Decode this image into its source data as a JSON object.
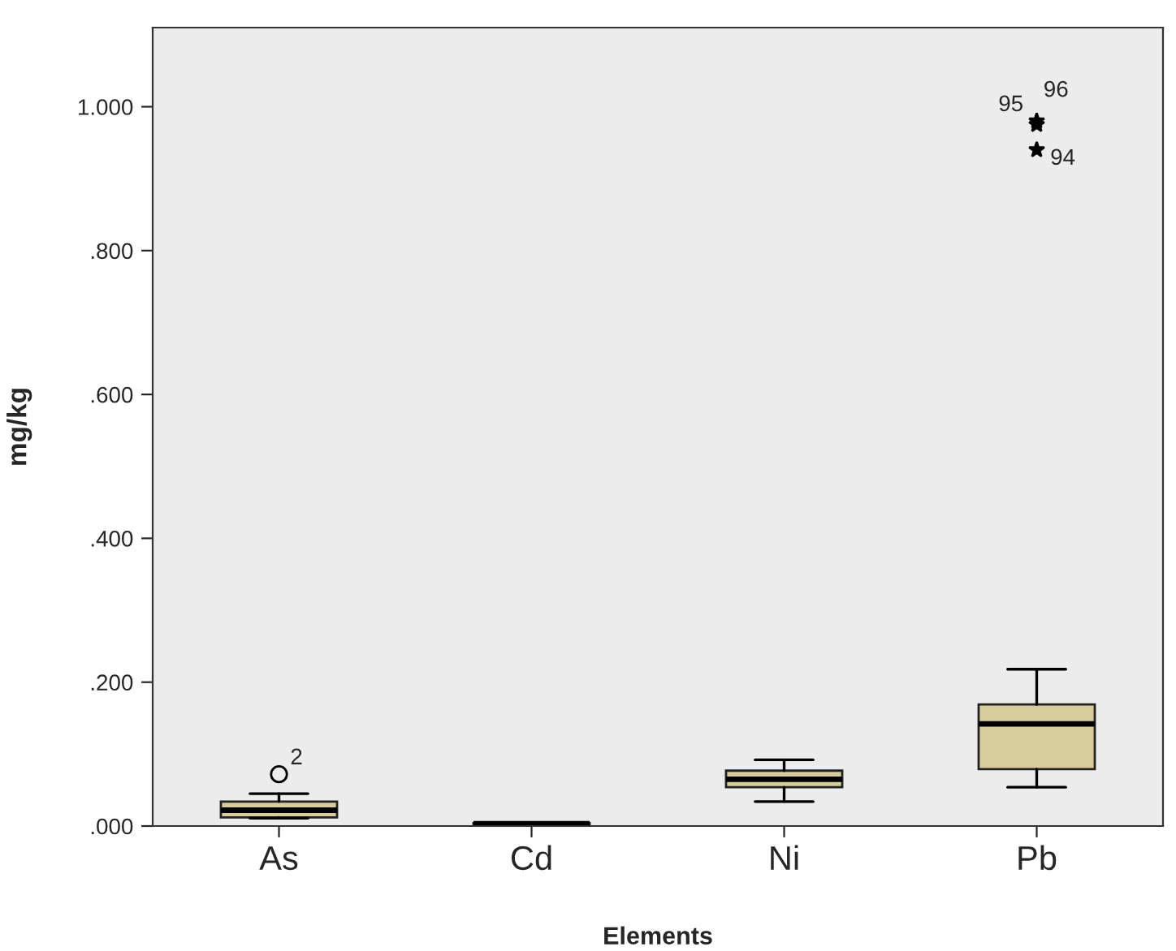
{
  "chart_data": {
    "type": "box",
    "xlabel": "Elements",
    "ylabel": "mg/kg",
    "categories": [
      "As",
      "Cd",
      "Ni",
      "Pb"
    ],
    "boxes": [
      {
        "low": 0.011,
        "q1": 0.012,
        "median": 0.022,
        "q3": 0.034,
        "high": 0.045,
        "outliers": [
          0.072
        ]
      },
      {
        "low": 0.001,
        "q1": 0.002,
        "median": 0.003,
        "q3": 0.004,
        "high": 0.005
      },
      {
        "low": 0.034,
        "q1": 0.054,
        "median": 0.065,
        "q3": 0.077,
        "high": 0.092
      },
      {
        "low": 0.054,
        "q1": 0.079,
        "median": 0.142,
        "q3": 0.169,
        "high": 0.218,
        "outliers": [
          0.98,
          0.975,
          0.94
        ]
      }
    ],
    "color": "#d6cc9c",
    "ylim": [
      0,
      1.11
    ],
    "yticks": [
      {
        "value": 0,
        "label": ".000"
      },
      {
        "value": 0.2,
        "label": ".200"
      },
      {
        "value": 0.4,
        "label": ".400"
      },
      {
        "value": 0.6,
        "label": ".600"
      },
      {
        "value": 0.8,
        "label": ".800"
      },
      {
        "value": 1.0,
        "label": "1.000"
      }
    ],
    "annotations": [
      "2",
      "95",
      "96",
      "94"
    ],
    "grid": false
  }
}
